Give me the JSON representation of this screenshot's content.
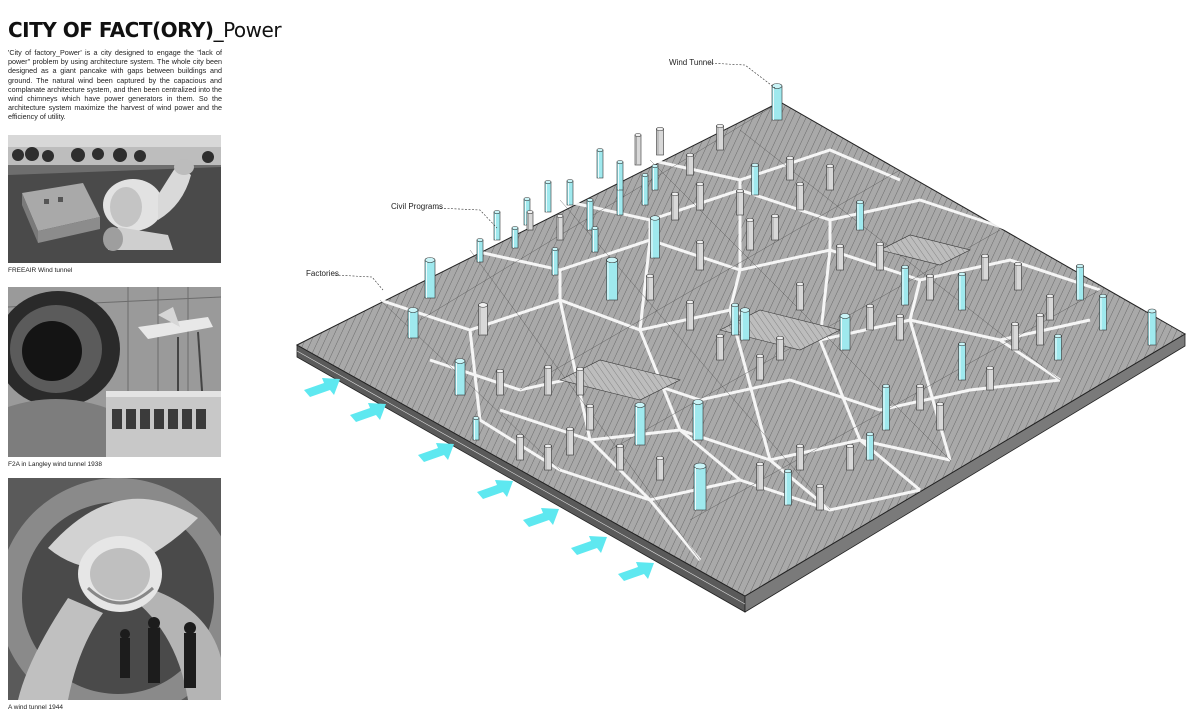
{
  "header": {
    "title_bold": "CITY OF FACT(ORY)",
    "title_thin": "_Power",
    "description": "'City of factory_Power' is a city designed to engage the \"lack of power\" problem by using architecture system. The whole city been designed as a giant pancake with gaps between buildings and ground. The natural wind been captured by the capacious and complanate architecture system, and then been centralized into the wind chimneys which have power generators in them. So the architecture system maximize the harvest of wind power and the efficiency of utility."
  },
  "photos": [
    {
      "caption": "FREEAIR Wind tunnel"
    },
    {
      "caption": "F2A in Langley wind tunnel 1938"
    },
    {
      "caption": "A wind tunnel 1944"
    }
  ],
  "labels": {
    "wind_tunnel": "Wind Tunnel",
    "civil_programs": "Civil Programs",
    "factories": "Factories"
  },
  "colors": {
    "accent_cyan": "#5ee8f0",
    "tower_cyan": "#9fe9ee",
    "platform_gray": "#9a9a9a"
  },
  "icons": {
    "wind_arrow": "wind-arrow-icon"
  }
}
